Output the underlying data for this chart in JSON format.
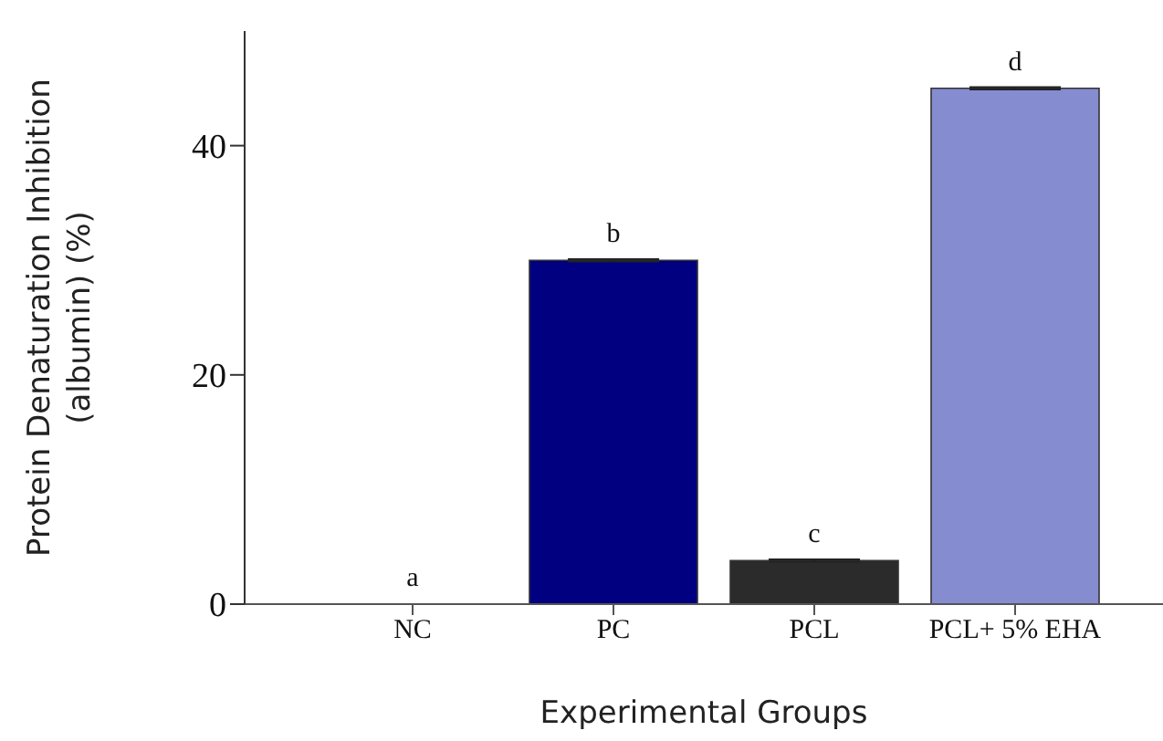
{
  "chart_data": {
    "type": "bar",
    "xlabel": "Experimental Groups",
    "ylabel": "Protein Denaturation Inhibition\n(albumin) (%)",
    "categories": [
      "NC",
      "PC",
      "PCL",
      "PCL+ 5% EHA"
    ],
    "values": [
      0,
      30,
      3.8,
      45
    ],
    "colors": [
      "#000080",
      "#000080",
      "#2b2b2b",
      "#868cd0"
    ],
    "errors": [
      null,
      0.1,
      0.1,
      0.1
    ],
    "ylim": [
      0,
      50
    ],
    "yticks": [
      0,
      20,
      40
    ],
    "grid": false,
    "annotations": [
      {
        "text": "a",
        "x": "NC",
        "y": 0
      },
      {
        "text": "b",
        "x": "PC",
        "y": 30
      },
      {
        "text": "c",
        "x": "PCL",
        "y": 3.8
      },
      {
        "text": "d",
        "x": "PCL+ 5% EHA",
        "y": 45
      }
    ]
  }
}
